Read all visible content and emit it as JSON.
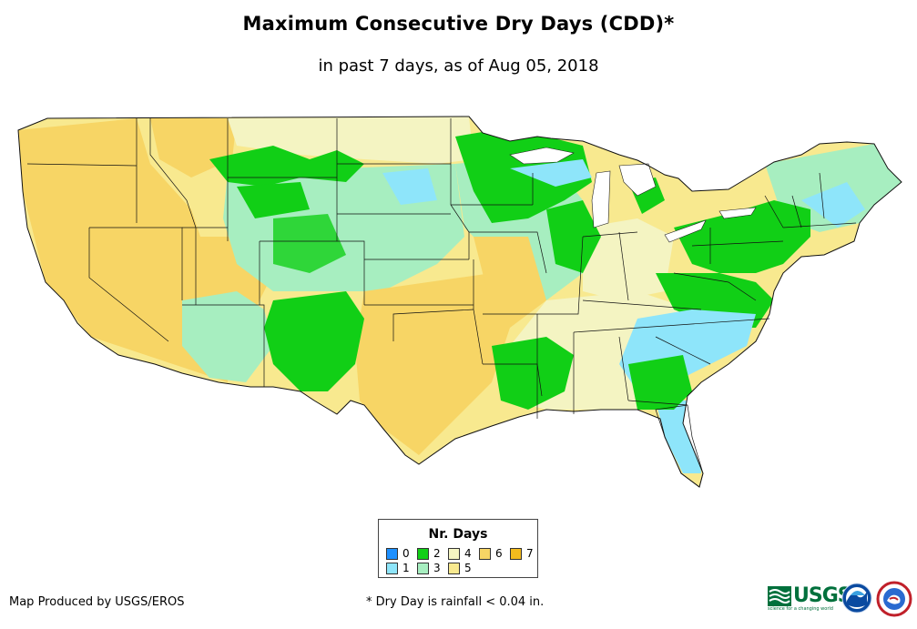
{
  "header": {
    "title": "Maximum Consecutive Dry Days (CDD)*",
    "subtitle": "in past 7 days, as of Aug 05, 2018"
  },
  "legend": {
    "title": "Nr. Days",
    "items": [
      {
        "label": "0",
        "color": "#1e90ff"
      },
      {
        "label": "1",
        "color": "#8ee5fa"
      },
      {
        "label": "2",
        "color": "#11cf16"
      },
      {
        "label": "3",
        "color": "#a7eec0"
      },
      {
        "label": "4",
        "color": "#f4f4c2"
      },
      {
        "label": "5",
        "color": "#f8e98f"
      },
      {
        "label": "6",
        "color": "#f7d565"
      },
      {
        "label": "7",
        "color": "#f3bb1d"
      }
    ]
  },
  "footer": {
    "credit": "Map Produced by USGS/EROS",
    "footnote": "* Dry Day is rainfall < 0.04 in.",
    "usgs_logo": "USGS",
    "usgs_tagline": "science for a changing world"
  },
  "icons": [
    "usgs-logo-icon",
    "noaa-logo-icon",
    "nws-logo-icon"
  ]
}
